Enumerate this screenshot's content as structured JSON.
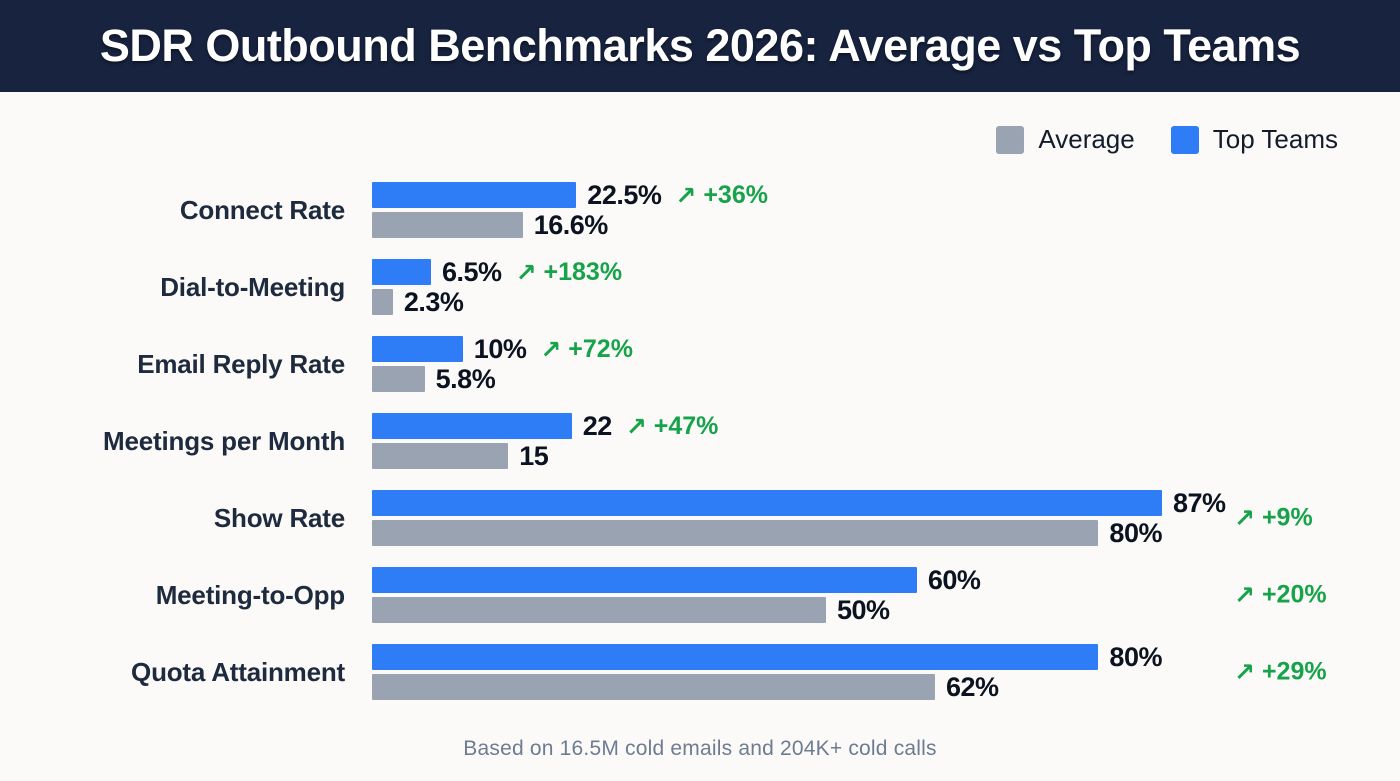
{
  "header": {
    "title": "SDR Outbound Benchmarks 2026: Average vs Top Teams"
  },
  "legend": {
    "average_label": "Average",
    "top_teams_label": "Top Teams"
  },
  "footnote": "Based on 16.5M cold emails and 204K+ cold calls",
  "colors": {
    "header_bg": "#17233f",
    "page_bg": "#fbfaf8",
    "top_teams_blue": "#2f7df6",
    "average_gray": "#9aa3b2",
    "delta_green": "#16a34a",
    "value_text": "#0c1320",
    "category_text": "#1e2a3d",
    "footnote_text": "#6e7c93"
  },
  "icons": {
    "delta_arrow": "↗"
  },
  "chart_data": {
    "type": "bar",
    "orientation": "horizontal",
    "title": "SDR Outbound Benchmarks 2026: Average vs Top Teams",
    "legend_position": "top-right",
    "grid": false,
    "axis_max": 87,
    "series_names": [
      "Average",
      "Top Teams"
    ],
    "categories": [
      "Connect Rate",
      "Dial-to-Meeting",
      "Email Reply Rate",
      "Meetings per Month",
      "Show Rate",
      "Meeting-to-Opp",
      "Quota Attainment"
    ],
    "rows": [
      {
        "category": "Connect Rate",
        "top_teams_value": 22.5,
        "top_teams_label": "22.5%",
        "average_value": 16.6,
        "average_label": "16.6%",
        "delta_label": "+36%",
        "delta_inline": true
      },
      {
        "category": "Dial-to-Meeting",
        "top_teams_value": 6.5,
        "top_teams_label": "6.5%",
        "average_value": 2.3,
        "average_label": "2.3%",
        "delta_label": "+183%",
        "delta_inline": true
      },
      {
        "category": "Email Reply Rate",
        "top_teams_value": 10,
        "top_teams_label": "10%",
        "average_value": 5.8,
        "average_label": "5.8%",
        "delta_label": "+72%",
        "delta_inline": true
      },
      {
        "category": "Meetings per Month",
        "top_teams_value": 22,
        "top_teams_label": "22",
        "average_value": 15,
        "average_label": "15",
        "delta_label": "+47%",
        "delta_inline": true
      },
      {
        "category": "Show Rate",
        "top_teams_value": 87,
        "top_teams_label": "87%",
        "average_value": 80,
        "average_label": "80%",
        "delta_label": "+9%",
        "delta_inline": false
      },
      {
        "category": "Meeting-to-Opp",
        "top_teams_value": 60,
        "top_teams_label": "60%",
        "average_value": 50,
        "average_label": "50%",
        "delta_label": "+20%",
        "delta_inline": false
      },
      {
        "category": "Quota Attainment",
        "top_teams_value": 80,
        "top_teams_label": "80%",
        "average_value": 62,
        "average_label": "62%",
        "delta_label": "+29%",
        "delta_inline": false
      }
    ]
  }
}
